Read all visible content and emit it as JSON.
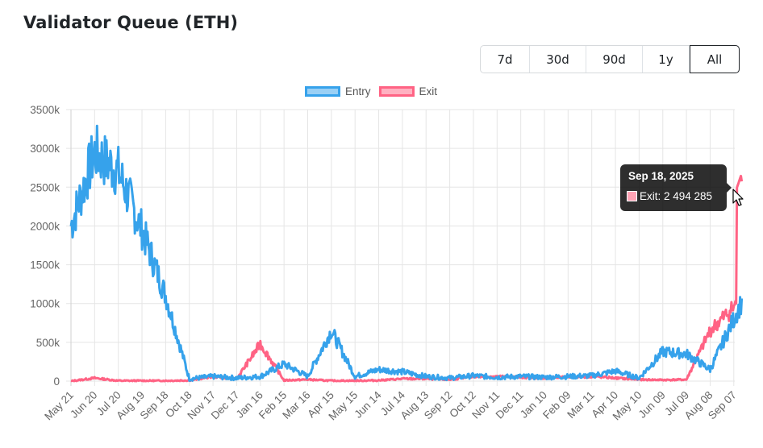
{
  "header": {
    "title": "Validator Queue (ETH)"
  },
  "range_selector": {
    "options": [
      "7d",
      "30d",
      "90d",
      "1y",
      "All"
    ],
    "selected": "All"
  },
  "colors": {
    "entry_line": "#36a2eb",
    "entry_fill": "#9ad0f5",
    "exit_line": "#ff6384",
    "exit_fill": "#ffb1c1",
    "grid": "#e5e5e5",
    "tick_text": "#666666"
  },
  "tooltip": {
    "title": "Sep 18, 2025",
    "label": "Exit: 2 494 285"
  },
  "chart_data": {
    "type": "line",
    "title": "Validator Queue (ETH)",
    "xlabel": "",
    "ylabel": "",
    "ylim": [
      0,
      3500000
    ],
    "yticks": [
      "0",
      "500k",
      "1000k",
      "1500k",
      "2000k",
      "2500k",
      "3000k",
      "3500k"
    ],
    "legend_position": "top",
    "grid": true,
    "x": [
      "May 21",
      "Jun 20",
      "Jul 20",
      "Aug 19",
      "Sep 18",
      "Oct 18",
      "Nov 17",
      "Dec 17",
      "Jan 16",
      "Feb 15",
      "Mar 16",
      "Apr 15",
      "May 15",
      "Jun 14",
      "Jul 14",
      "Aug 13",
      "Sep 12",
      "Oct 12",
      "Nov 11",
      "Dec 11",
      "Jan 10",
      "Feb 09",
      "Mar 11",
      "Apr 10",
      "May 10",
      "Jun 09",
      "Jul 09",
      "Aug 08",
      "Sep 07"
    ],
    "series": [
      {
        "name": "Entry",
        "values": [
          2000000,
          2950000,
          2700000,
          1950000,
          1100000,
          30000,
          60000,
          40000,
          60000,
          220000,
          60000,
          650000,
          60000,
          150000,
          120000,
          60000,
          40000,
          70000,
          50000,
          60000,
          50000,
          60000,
          70000,
          130000,
          40000,
          380000,
          350000,
          150000,
          800000
        ]
      },
      {
        "name": "Exit",
        "values": [
          0,
          40000,
          5000,
          5000,
          5000,
          10000,
          60000,
          30000,
          480000,
          10000,
          20000,
          5000,
          5000,
          10000,
          30000,
          30000,
          20000,
          60000,
          60000,
          50000,
          40000,
          50000,
          60000,
          40000,
          20000,
          15000,
          20000,
          650000,
          950000
        ]
      }
    ],
    "annotations": [
      {
        "date": "Sep 18, 2025",
        "series": "Exit",
        "value": 2494285
      }
    ]
  }
}
